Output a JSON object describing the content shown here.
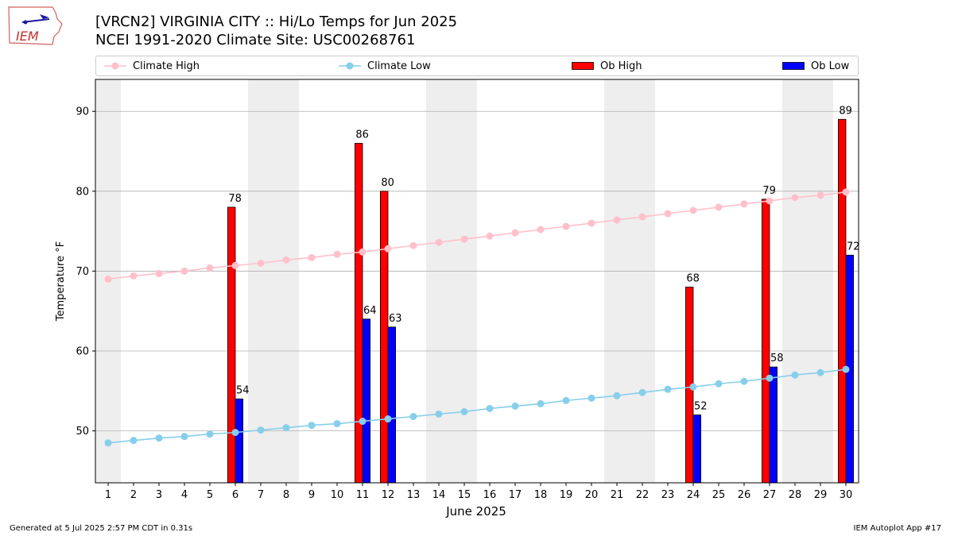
{
  "header": {
    "title_line1": "[VRCN2] VIRGINIA CITY :: Hi/Lo Temps for Jun 2025",
    "title_line2": "NCEI 1991-2020 Climate Site: USC00268761",
    "logo_text": "IEM"
  },
  "footer": {
    "generated": "Generated at 5 Jul 2025 2:57 PM CDT in 0.31s",
    "app": "IEM Autoplot App #17"
  },
  "legend": {
    "climate_high": "Climate High",
    "climate_low": "Climate Low",
    "ob_high": "Ob High",
    "ob_low": "Ob Low"
  },
  "colors": {
    "climate_high": "#ffc0cb",
    "climate_low": "#87ceeb",
    "ob_high": "#ff0000",
    "ob_low": "#0000ff",
    "weekend_shade": "#eeeeee",
    "grid": "#b0b0b0"
  },
  "chart_data": {
    "type": "bar",
    "xlabel": "June 2025",
    "ylabel": "Temperature °F",
    "ylim": [
      43.5,
      94
    ],
    "yticks": [
      50,
      60,
      70,
      80,
      90
    ],
    "days": [
      1,
      2,
      3,
      4,
      5,
      6,
      7,
      8,
      9,
      10,
      11,
      12,
      13,
      14,
      15,
      16,
      17,
      18,
      19,
      20,
      21,
      22,
      23,
      24,
      25,
      26,
      27,
      28,
      29,
      30
    ],
    "weekend_bands": [
      [
        1,
        1
      ],
      [
        7,
        8
      ],
      [
        14,
        15
      ],
      [
        21,
        22
      ],
      [
        28,
        29
      ]
    ],
    "grid": "horizontal",
    "legend_position": "top",
    "climate_high": [
      69.0,
      69.4,
      69.7,
      70.0,
      70.4,
      70.7,
      71.0,
      71.4,
      71.7,
      72.1,
      72.4,
      72.8,
      73.2,
      73.6,
      74.0,
      74.4,
      74.8,
      75.2,
      75.6,
      76.0,
      76.4,
      76.8,
      77.2,
      77.6,
      78.0,
      78.4,
      78.8,
      79.2,
      79.5,
      79.9
    ],
    "climate_low": [
      48.5,
      48.8,
      49.1,
      49.3,
      49.6,
      49.8,
      50.1,
      50.4,
      50.7,
      50.9,
      51.2,
      51.5,
      51.8,
      52.1,
      52.4,
      52.8,
      53.1,
      53.4,
      53.8,
      54.1,
      54.4,
      54.8,
      55.2,
      55.5,
      55.9,
      56.2,
      56.6,
      57.0,
      57.3,
      57.7
    ],
    "ob_high": [
      {
        "day": 6,
        "value": 78
      },
      {
        "day": 11,
        "value": 86
      },
      {
        "day": 12,
        "value": 80
      },
      {
        "day": 24,
        "value": 68
      },
      {
        "day": 27,
        "value": 79
      },
      {
        "day": 30,
        "value": 89
      }
    ],
    "ob_low": [
      {
        "day": 6,
        "value": 54
      },
      {
        "day": 11,
        "value": 64
      },
      {
        "day": 12,
        "value": 63
      },
      {
        "day": 24,
        "value": 52
      },
      {
        "day": 27,
        "value": 58
      },
      {
        "day": 30,
        "value": 72
      }
    ]
  }
}
